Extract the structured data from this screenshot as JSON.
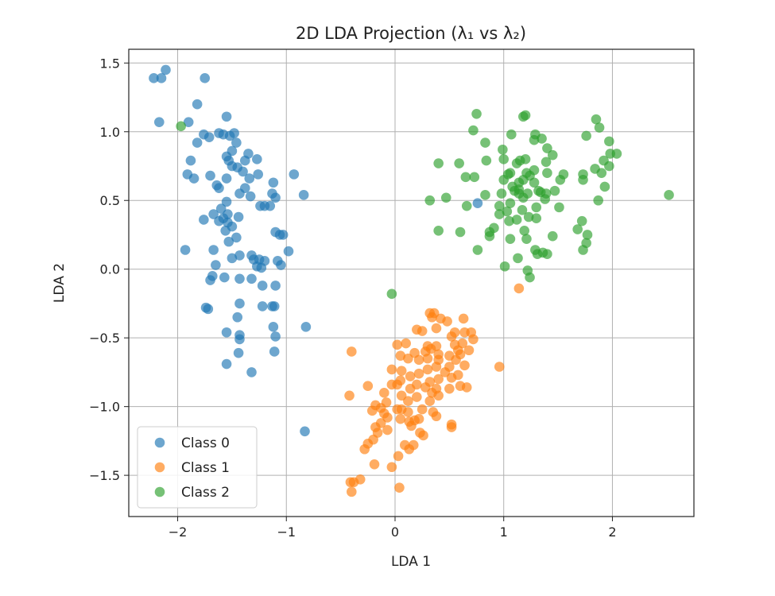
{
  "chart_data": {
    "type": "scatter",
    "title": "2D LDA Projection (λ₁ vs λ₂)",
    "xlabel": "LDA 1",
    "ylabel": "LDA 2",
    "xlim": [
      -2.45,
      2.75
    ],
    "ylim": [
      -1.8,
      1.6
    ],
    "xticks": [
      -2,
      -1,
      0,
      1,
      2
    ],
    "yticks": [
      -1.5,
      -1.0,
      -0.5,
      0.0,
      0.5,
      1.0,
      1.5
    ],
    "xtick_labels": [
      "−2",
      "−1",
      "0",
      "1",
      "2"
    ],
    "ytick_labels": [
      "−1.5",
      "−1.0",
      "−0.5",
      "0.0",
      "0.5",
      "1.0",
      "1.5"
    ],
    "grid": true,
    "legend_position": "lower-left",
    "series": [
      {
        "name": "Class 0",
        "color": "#1f77b4",
        "points": [
          [
            -2.22,
            1.39
          ],
          [
            -2.15,
            1.39
          ],
          [
            -2.11,
            1.45
          ],
          [
            -2.17,
            1.07
          ],
          [
            -1.75,
            1.39
          ],
          [
            -1.9,
            1.07
          ],
          [
            -1.82,
            1.2
          ],
          [
            -1.71,
            0.96
          ],
          [
            -1.62,
            0.99
          ],
          [
            -1.55,
            1.11
          ],
          [
            -1.58,
            0.98
          ],
          [
            -1.52,
            0.97
          ],
          [
            -1.48,
            0.99
          ],
          [
            -1.46,
            0.92
          ],
          [
            -1.5,
            0.86
          ],
          [
            -1.55,
            0.82
          ],
          [
            -1.53,
            0.79
          ],
          [
            -1.35,
            0.84
          ],
          [
            -1.38,
            0.79
          ],
          [
            -1.88,
            0.79
          ],
          [
            -1.82,
            0.92
          ],
          [
            -1.76,
            0.98
          ],
          [
            -1.91,
            0.69
          ],
          [
            -1.85,
            0.66
          ],
          [
            -1.7,
            0.68
          ],
          [
            -1.64,
            0.61
          ],
          [
            -1.62,
            0.59
          ],
          [
            -1.55,
            0.66
          ],
          [
            -1.5,
            0.75
          ],
          [
            -1.45,
            0.74
          ],
          [
            -1.4,
            0.71
          ],
          [
            -1.34,
            0.66
          ],
          [
            -1.27,
            0.8
          ],
          [
            -1.26,
            0.69
          ],
          [
            -1.38,
            0.59
          ],
          [
            -1.33,
            0.53
          ],
          [
            -1.43,
            0.55
          ],
          [
            -1.55,
            0.49
          ],
          [
            -1.12,
            0.63
          ],
          [
            -1.13,
            0.55
          ],
          [
            -1.1,
            0.52
          ],
          [
            -1.15,
            0.46
          ],
          [
            -1.2,
            0.46
          ],
          [
            -1.24,
            0.46
          ],
          [
            -0.93,
            0.69
          ],
          [
            -0.84,
            0.54
          ],
          [
            -1.76,
            0.36
          ],
          [
            -1.67,
            0.4
          ],
          [
            -1.62,
            0.35
          ],
          [
            -1.6,
            0.44
          ],
          [
            -1.58,
            0.37
          ],
          [
            -1.54,
            0.4
          ],
          [
            -1.54,
            0.34
          ],
          [
            -1.5,
            0.31
          ],
          [
            -1.44,
            0.38
          ],
          [
            -1.56,
            0.28
          ],
          [
            -1.53,
            0.2
          ],
          [
            -1.46,
            0.23
          ],
          [
            -1.1,
            0.27
          ],
          [
            -1.06,
            0.25
          ],
          [
            -1.03,
            0.25
          ],
          [
            -1.93,
            0.14
          ],
          [
            -1.67,
            0.14
          ],
          [
            -1.5,
            0.08
          ],
          [
            -1.43,
            0.1
          ],
          [
            -1.32,
            0.1
          ],
          [
            -1.3,
            0.07
          ],
          [
            -1.25,
            0.07
          ],
          [
            -1.2,
            0.06
          ],
          [
            -1.27,
            0.02
          ],
          [
            -1.23,
            0.01
          ],
          [
            -1.08,
            0.06
          ],
          [
            -1.05,
            0.03
          ],
          [
            -0.98,
            0.13
          ],
          [
            -1.65,
            0.03
          ],
          [
            -1.68,
            -0.05
          ],
          [
            -1.7,
            -0.08
          ],
          [
            -1.57,
            -0.06
          ],
          [
            -1.43,
            -0.07
          ],
          [
            -1.32,
            -0.07
          ],
          [
            -1.22,
            -0.12
          ],
          [
            -1.1,
            -0.12
          ],
          [
            -1.74,
            -0.28
          ],
          [
            -1.72,
            -0.29
          ],
          [
            -1.43,
            -0.25
          ],
          [
            -1.22,
            -0.27
          ],
          [
            -1.13,
            -0.27
          ],
          [
            -1.11,
            -0.27
          ],
          [
            -1.45,
            -0.35
          ],
          [
            -1.12,
            -0.42
          ],
          [
            -1.1,
            -0.49
          ],
          [
            -1.55,
            -0.46
          ],
          [
            -1.43,
            -0.48
          ],
          [
            -1.43,
            -0.51
          ],
          [
            -0.82,
            -0.42
          ],
          [
            -1.44,
            -0.61
          ],
          [
            -1.11,
            -0.6
          ],
          [
            -1.55,
            -0.69
          ],
          [
            -1.32,
            -0.75
          ],
          [
            -0.83,
            -1.18
          ],
          [
            0.76,
            0.48
          ]
        ]
      },
      {
        "name": "Class 1",
        "color": "#ff7f0e",
        "points": [
          [
            0.32,
            -0.32
          ],
          [
            0.36,
            -0.32
          ],
          [
            0.34,
            -0.35
          ],
          [
            0.42,
            -0.36
          ],
          [
            0.48,
            -0.38
          ],
          [
            0.63,
            -0.36
          ],
          [
            0.38,
            -0.43
          ],
          [
            0.25,
            -0.45
          ],
          [
            0.2,
            -0.44
          ],
          [
            0.55,
            -0.46
          ],
          [
            0.64,
            -0.46
          ],
          [
            0.7,
            -0.46
          ],
          [
            0.52,
            -0.49
          ],
          [
            0.72,
            -0.51
          ],
          [
            0.62,
            -0.54
          ],
          [
            0.55,
            -0.55
          ],
          [
            0.02,
            -0.55
          ],
          [
            0.1,
            -0.54
          ],
          [
            0.3,
            -0.56
          ],
          [
            0.33,
            -0.58
          ],
          [
            0.38,
            -0.56
          ],
          [
            0.28,
            -0.6
          ],
          [
            0.18,
            -0.61
          ],
          [
            0.58,
            -0.59
          ],
          [
            0.68,
            -0.59
          ],
          [
            0.4,
            -0.62
          ],
          [
            0.5,
            -0.63
          ],
          [
            0.6,
            -0.62
          ],
          [
            -0.4,
            -0.6
          ],
          [
            0.05,
            -0.63
          ],
          [
            0.12,
            -0.65
          ],
          [
            0.22,
            -0.66
          ],
          [
            0.3,
            -0.65
          ],
          [
            0.4,
            -0.66
          ],
          [
            0.56,
            -0.66
          ],
          [
            0.64,
            -0.7
          ],
          [
            0.5,
            -0.71
          ],
          [
            0.46,
            -0.75
          ],
          [
            0.38,
            -0.71
          ],
          [
            0.3,
            -0.73
          ],
          [
            -0.03,
            -0.73
          ],
          [
            0.06,
            -0.74
          ],
          [
            0.22,
            -0.76
          ],
          [
            0.96,
            -0.71
          ],
          [
            0.58,
            -0.77
          ],
          [
            0.52,
            -0.79
          ],
          [
            0.4,
            -0.8
          ],
          [
            0.32,
            -0.82
          ],
          [
            0.14,
            -0.78
          ],
          [
            0.05,
            -0.81
          ],
          [
            -0.03,
            -0.84
          ],
          [
            0.02,
            -0.84
          ],
          [
            0.2,
            -0.84
          ],
          [
            0.28,
            -0.86
          ],
          [
            0.38,
            -0.87
          ],
          [
            0.5,
            -0.87
          ],
          [
            0.6,
            -0.85
          ],
          [
            0.66,
            -0.86
          ],
          [
            -0.25,
            -0.85
          ],
          [
            0.14,
            -0.87
          ],
          [
            -0.1,
            -0.9
          ],
          [
            -0.42,
            -0.92
          ],
          [
            0.06,
            -0.92
          ],
          [
            0.2,
            -0.93
          ],
          [
            0.34,
            -0.9
          ],
          [
            0.4,
            -0.92
          ],
          [
            0.12,
            -0.96
          ],
          [
            0.32,
            -0.96
          ],
          [
            -0.08,
            -0.97
          ],
          [
            -0.18,
            -0.99
          ],
          [
            -0.13,
            -1.01
          ],
          [
            0.02,
            -1.02
          ],
          [
            0.06,
            -1.02
          ],
          [
            0.25,
            -1.02
          ],
          [
            -0.21,
            -1.03
          ],
          [
            -0.1,
            -1.05
          ],
          [
            0.12,
            -1.04
          ],
          [
            0.35,
            -1.04
          ],
          [
            0.38,
            -1.07
          ],
          [
            -0.07,
            -1.08
          ],
          [
            0.05,
            -1.09
          ],
          [
            0.18,
            -1.1
          ],
          [
            0.22,
            -1.09
          ],
          [
            0.13,
            -1.11
          ],
          [
            -0.13,
            -1.12
          ],
          [
            0.15,
            -1.14
          ],
          [
            0.52,
            -1.13
          ],
          [
            0.52,
            -1.15
          ],
          [
            -0.18,
            -1.15
          ],
          [
            -0.16,
            -1.19
          ],
          [
            -0.07,
            -1.17
          ],
          [
            0.23,
            -1.19
          ],
          [
            0.26,
            -1.21
          ],
          [
            -0.2,
            -1.24
          ],
          [
            -0.25,
            -1.27
          ],
          [
            0.09,
            -1.28
          ],
          [
            0.17,
            -1.28
          ],
          [
            0.13,
            -1.31
          ],
          [
            -0.28,
            -1.31
          ],
          [
            0.03,
            -1.36
          ],
          [
            -0.19,
            -1.42
          ],
          [
            -0.03,
            -1.44
          ],
          [
            -0.32,
            -1.53
          ],
          [
            -0.38,
            -1.55
          ],
          [
            -0.41,
            -1.55
          ],
          [
            0.04,
            -1.59
          ],
          [
            -0.4,
            -1.62
          ],
          [
            1.14,
            -0.14
          ]
        ]
      },
      {
        "name": "Class 2",
        "color": "#2ca02c",
        "points": [
          [
            -1.97,
            1.04
          ],
          [
            -0.03,
            -0.18
          ],
          [
            0.75,
            1.13
          ],
          [
            1.18,
            1.11
          ],
          [
            1.2,
            1.12
          ],
          [
            0.72,
            1.01
          ],
          [
            0.83,
            0.92
          ],
          [
            1.07,
            0.98
          ],
          [
            0.99,
            0.87
          ],
          [
            1.29,
            0.98
          ],
          [
            1.35,
            0.95
          ],
          [
            1.28,
            0.94
          ],
          [
            1.4,
            0.88
          ],
          [
            1.45,
            0.83
          ],
          [
            1.88,
            1.03
          ],
          [
            1.85,
            1.09
          ],
          [
            1.97,
            0.93
          ],
          [
            1.98,
            0.84
          ],
          [
            2.04,
            0.84
          ],
          [
            1.76,
            0.97
          ],
          [
            1.84,
            0.73
          ],
          [
            1.92,
            0.79
          ],
          [
            1.97,
            0.75
          ],
          [
            1.9,
            0.7
          ],
          [
            0.4,
            0.77
          ],
          [
            0.59,
            0.77
          ],
          [
            0.65,
            0.67
          ],
          [
            0.73,
            0.67
          ],
          [
            0.84,
            0.79
          ],
          [
            1.0,
            0.8
          ],
          [
            1.04,
            0.69
          ],
          [
            1.12,
            0.77
          ],
          [
            1.15,
            0.79
          ],
          [
            1.2,
            0.8
          ],
          [
            1.39,
            0.78
          ],
          [
            1.4,
            0.7
          ],
          [
            1.52,
            0.65
          ],
          [
            1.55,
            0.69
          ],
          [
            1.28,
            0.72
          ],
          [
            1.24,
            0.68
          ],
          [
            1.21,
            0.7
          ],
          [
            1.18,
            0.65
          ],
          [
            1.14,
            0.63
          ],
          [
            1.1,
            0.57
          ],
          [
            1.08,
            0.6
          ],
          [
            1.06,
            0.7
          ],
          [
            1.0,
            0.65
          ],
          [
            0.98,
            0.55
          ],
          [
            1.14,
            0.55
          ],
          [
            1.18,
            0.52
          ],
          [
            1.28,
            0.63
          ],
          [
            1.32,
            0.57
          ],
          [
            1.34,
            0.56
          ],
          [
            1.39,
            0.55
          ],
          [
            1.47,
            0.57
          ],
          [
            1.73,
            0.65
          ],
          [
            1.73,
            0.69
          ],
          [
            1.93,
            0.6
          ],
          [
            1.87,
            0.5
          ],
          [
            0.32,
            0.5
          ],
          [
            0.47,
            0.52
          ],
          [
            0.66,
            0.46
          ],
          [
            0.83,
            0.54
          ],
          [
            0.96,
            0.46
          ],
          [
            1.03,
            0.42
          ],
          [
            1.06,
            0.48
          ],
          [
            1.17,
            0.43
          ],
          [
            1.3,
            0.45
          ],
          [
            1.38,
            0.51
          ],
          [
            1.51,
            0.45
          ],
          [
            0.4,
            0.28
          ],
          [
            0.6,
            0.27
          ],
          [
            0.87,
            0.27
          ],
          [
            0.91,
            0.3
          ],
          [
            0.96,
            0.4
          ],
          [
            1.05,
            0.35
          ],
          [
            1.12,
            0.36
          ],
          [
            1.19,
            0.28
          ],
          [
            1.23,
            0.38
          ],
          [
            1.3,
            0.37
          ],
          [
            1.45,
            0.24
          ],
          [
            1.68,
            0.29
          ],
          [
            1.72,
            0.35
          ],
          [
            1.77,
            0.25
          ],
          [
            1.76,
            0.19
          ],
          [
            0.87,
            0.24
          ],
          [
            1.06,
            0.22
          ],
          [
            1.21,
            0.22
          ],
          [
            1.29,
            0.14
          ],
          [
            1.31,
            0.11
          ],
          [
            1.36,
            0.12
          ],
          [
            1.4,
            0.11
          ],
          [
            1.73,
            0.14
          ],
          [
            0.76,
            0.14
          ],
          [
            1.13,
            0.08
          ],
          [
            1.01,
            0.02
          ],
          [
            1.22,
            -0.01
          ],
          [
            1.24,
            -0.06
          ],
          [
            2.52,
            0.54
          ],
          [
            1.22,
            0.55
          ],
          [
            1.14,
            0.58
          ]
        ]
      }
    ]
  }
}
